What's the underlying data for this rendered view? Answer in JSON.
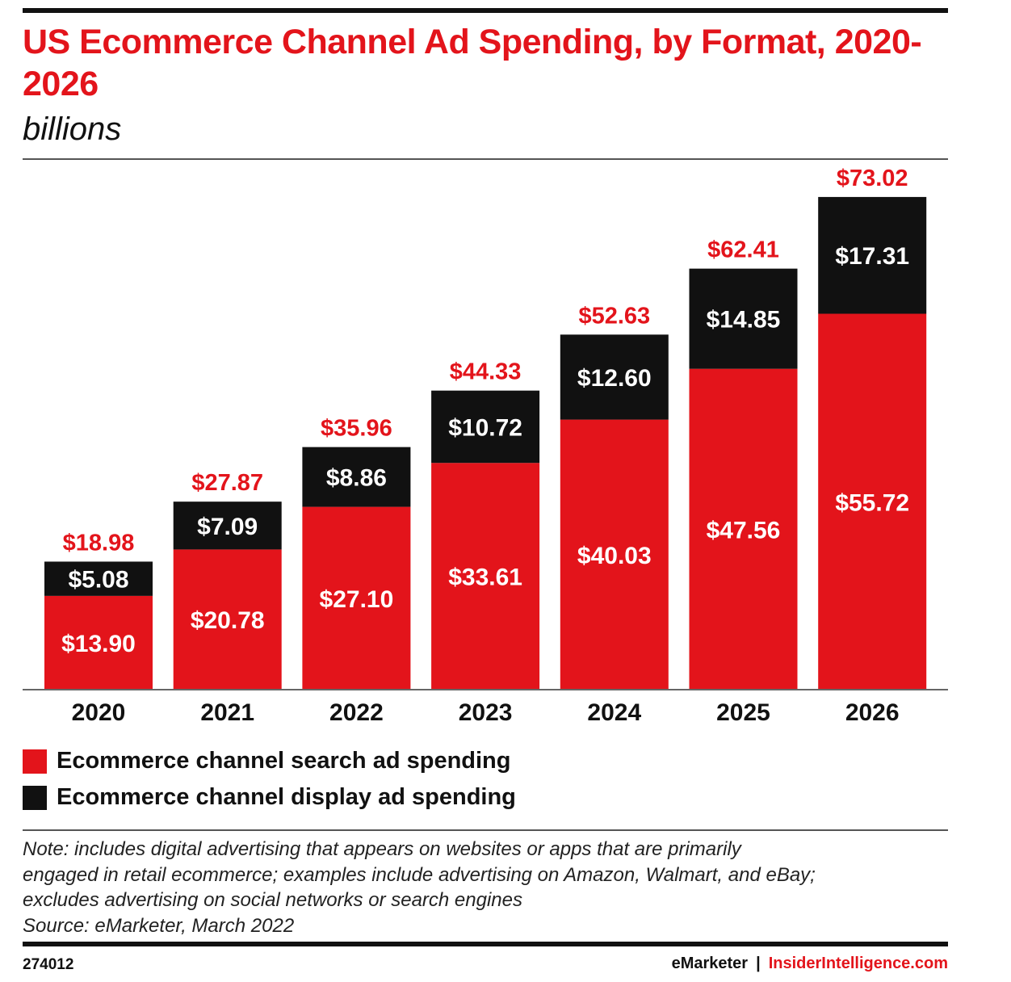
{
  "title": "US Ecommerce Channel Ad Spending, by Format, 2020-2026",
  "subtitle": "billions",
  "chart_data": {
    "type": "bar",
    "stacked": true,
    "categories": [
      "2020",
      "2021",
      "2022",
      "2023",
      "2024",
      "2025",
      "2026"
    ],
    "series": [
      {
        "name": "Ecommerce channel search ad spending",
        "values": [
          13.9,
          20.78,
          27.1,
          33.61,
          40.03,
          47.56,
          55.72
        ],
        "labels": [
          "$13.90",
          "$20.78",
          "$27.10",
          "$33.61",
          "$40.03",
          "$47.56",
          "$55.72"
        ],
        "color": "#e3141b"
      },
      {
        "name": "Ecommerce channel display ad spending",
        "values": [
          5.08,
          7.09,
          8.86,
          10.72,
          12.6,
          14.85,
          17.31
        ],
        "labels": [
          "$5.08",
          "$7.09",
          "$8.86",
          "$10.72",
          "$12.60",
          "$14.85",
          "$17.31"
        ],
        "color": "#111111"
      }
    ],
    "totals": [
      18.98,
      27.87,
      35.96,
      44.33,
      52.63,
      62.41,
      73.02
    ],
    "total_labels": [
      "$18.98",
      "$27.87",
      "$35.96",
      "$44.33",
      "$52.63",
      "$62.41",
      "$73.02"
    ],
    "total_label_color": "#e3141b",
    "ylim": [
      0,
      80
    ],
    "grid": false,
    "legend_position": "bottom-left"
  },
  "legend": {
    "search_label": "Ecommerce channel search ad spending",
    "display_label": "Ecommerce channel display ad spending"
  },
  "note": {
    "line1": "Note: includes digital advertising that appears on websites or apps that are primarily",
    "line2": "engaged in retail ecommerce; examples include advertising on Amazon, Walmart, and eBay;",
    "line3": "excludes advertising on social networks or search engines",
    "source": "Source: eMarketer, March 2022"
  },
  "footer": {
    "chart_id": "274012",
    "brand_primary": "eMarketer",
    "separator": "|",
    "brand_secondary": "InsiderIntelligence.com"
  },
  "colors": {
    "accent_red": "#e3141b",
    "dark": "#111111"
  }
}
